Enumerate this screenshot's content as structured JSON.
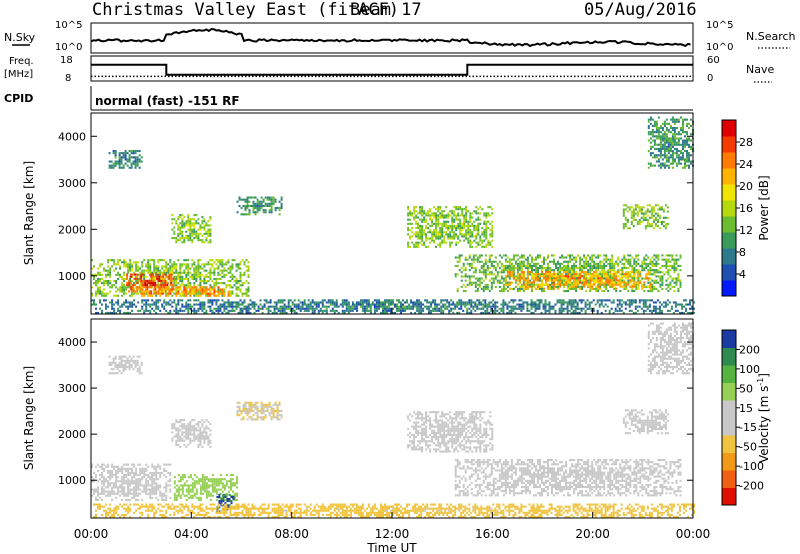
{
  "header": {
    "station": "Christmas Valley East (fitACF)",
    "beam": "Beam 17",
    "date": "05/Aug/2016"
  },
  "top_panels": {
    "nsky_label": "N.Sky",
    "nsky_ticks": [
      "10^5",
      "10^0"
    ],
    "nsearch_label": "N.Search",
    "nsearch_ticks": [
      "10^5",
      "10^0"
    ],
    "freq_label_1": "Freq.",
    "freq_label_2": "[MHz]",
    "freq_ticks": [
      "18",
      "8"
    ],
    "nave_label": "Nave",
    "nave_ticks": [
      "60",
      "0"
    ],
    "cpid_label": "CPID",
    "cpid_text": "normal (fast) -151 RF"
  },
  "power_panel": {
    "ylabel": "Slant Range [km]",
    "colorbar_label": "Power [dB]",
    "colorbar_ticks": [
      "28",
      "24",
      "20",
      "16",
      "12",
      "8",
      "4"
    ],
    "colors": [
      "#0019ff",
      "#1f4fb0",
      "#2e7a8c",
      "#3a9b5a",
      "#6bbd2f",
      "#b6d80e",
      "#f1e400",
      "#ffb400",
      "#ff7a00",
      "#f53a00",
      "#e00000"
    ]
  },
  "velocity_panel": {
    "ylabel": "Slant Range [km]",
    "colorbar_label": "Velocity [m s",
    "colorbar_label_sup": "-1",
    "colorbar_label_end": "]",
    "colorbar_ticks": [
      "200",
      "100",
      "50",
      "15",
      "-15",
      "-50",
      "-100",
      "-200"
    ],
    "colors": [
      "#1a3ca0",
      "#2f8a50",
      "#55b440",
      "#96d055",
      "#c8c8c8",
      "#c8c8c8",
      "#f0c440",
      "#f29a18",
      "#f06010",
      "#e01000"
    ]
  },
  "xaxis": {
    "label": "Time UT",
    "ticks": [
      "00:00",
      "04:00",
      "08:00",
      "12:00",
      "16:00",
      "20:00",
      "00:00"
    ]
  },
  "yaxis": {
    "ticks": [
      "4000",
      "3000",
      "2000",
      "1000"
    ]
  },
  "chart_data": {
    "type": "heatmap",
    "title": "Christmas Valley East (fitACF)",
    "xlabel": "Time UT",
    "ylabel": "Slant Range [km]",
    "xlim_hours": [
      0,
      24
    ],
    "ylim_km": [
      180,
      4500
    ],
    "freq_mhz": [
      {
        "start": 0,
        "end": 3,
        "value": 14.5
      },
      {
        "start": 3,
        "end": 15,
        "value": 10.5
      },
      {
        "start": 15,
        "end": 24,
        "value": 14.5
      }
    ],
    "nave_level": 11,
    "power_db": [
      {
        "t0": 0.0,
        "t1": 6.3,
        "r0": 550,
        "r1": 1350,
        "db": 14
      },
      {
        "t0": 1.4,
        "t1": 3.3,
        "r0": 600,
        "r1": 1050,
        "db": 26
      },
      {
        "t0": 2.0,
        "t1": 5.5,
        "r0": 550,
        "r1": 750,
        "db": 23
      },
      {
        "t0": 0.7,
        "t1": 2.0,
        "r0": 3300,
        "r1": 3700,
        "db": 9
      },
      {
        "t0": 3.2,
        "t1": 4.8,
        "r0": 1700,
        "r1": 2300,
        "db": 14
      },
      {
        "t0": 5.8,
        "t1": 7.6,
        "r0": 2300,
        "r1": 2700,
        "db": 10
      },
      {
        "t0": 12.6,
        "t1": 16.0,
        "r0": 1600,
        "r1": 2500,
        "db": 14
      },
      {
        "t0": 14.5,
        "t1": 23.5,
        "r0": 650,
        "r1": 1450,
        "db": 13
      },
      {
        "t0": 16.5,
        "t1": 22.3,
        "r0": 700,
        "r1": 1100,
        "db": 22
      },
      {
        "t0": 21.2,
        "t1": 23.0,
        "r0": 2000,
        "r1": 2500,
        "db": 14
      },
      {
        "t0": 22.2,
        "t1": 24.0,
        "r0": 3300,
        "r1": 4400,
        "db": 10
      },
      {
        "t0": 0.0,
        "t1": 24.0,
        "r0": 180,
        "r1": 480,
        "db": 8
      }
    ],
    "velocity_ms": [
      {
        "t0": 0.0,
        "t1": 3.2,
        "r0": 550,
        "r1": 1350,
        "v": 0
      },
      {
        "t0": 3.3,
        "t1": 5.8,
        "r0": 550,
        "r1": 1100,
        "v": 60
      },
      {
        "t0": 5.0,
        "t1": 5.7,
        "r0": 300,
        "r1": 700,
        "v": 180
      },
      {
        "t0": 0.7,
        "t1": 2.0,
        "r0": 3300,
        "r1": 3700,
        "v": 0
      },
      {
        "t0": 3.2,
        "t1": 4.8,
        "r0": 1700,
        "r1": 2300,
        "v": 0
      },
      {
        "t0": 5.8,
        "t1": 7.6,
        "r0": 2300,
        "r1": 2700,
        "v": -40
      },
      {
        "t0": 12.6,
        "t1": 16.0,
        "r0": 1600,
        "r1": 2500,
        "v": 0
      },
      {
        "t0": 14.5,
        "t1": 23.5,
        "r0": 650,
        "r1": 1450,
        "v": 0
      },
      {
        "t0": 21.2,
        "t1": 23.0,
        "r0": 2000,
        "r1": 2500,
        "v": 0
      },
      {
        "t0": 22.2,
        "t1": 24.0,
        "r0": 3300,
        "r1": 4400,
        "v": -20
      },
      {
        "t0": 0.0,
        "t1": 24.0,
        "r0": 180,
        "r1": 480,
        "v": -60
      }
    ]
  }
}
